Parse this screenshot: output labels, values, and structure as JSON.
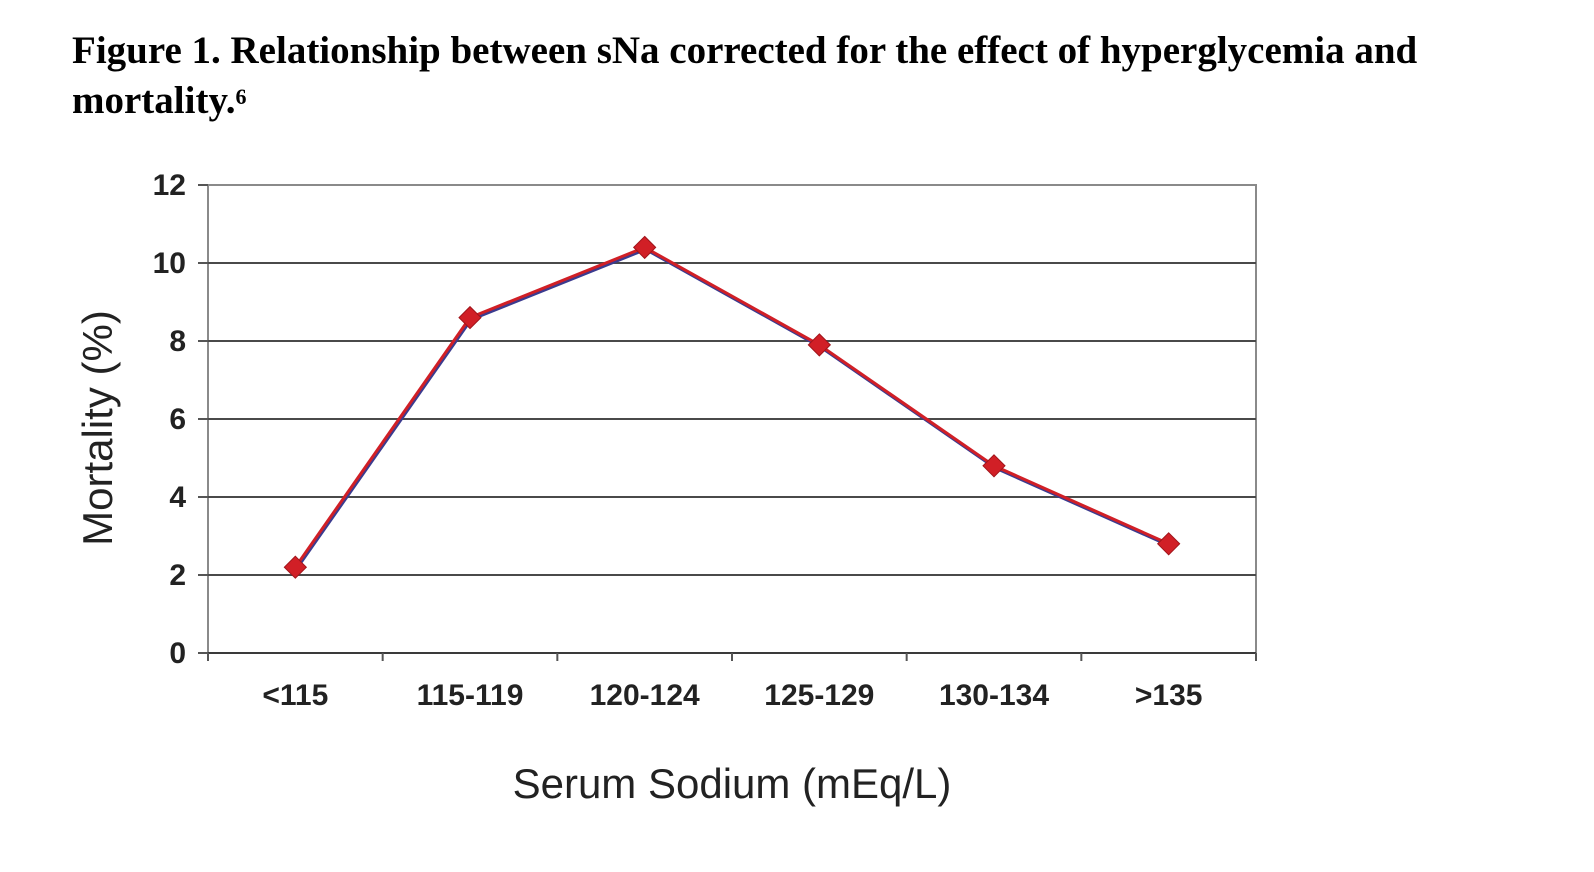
{
  "caption": {
    "text": "Figure 1. Relationship between sNa corrected for the effect of hyperglycemia and mortality.",
    "superscript": "6"
  },
  "chart_data": {
    "type": "line",
    "categories": [
      "<115",
      "115-119",
      "120-124",
      "125-129",
      "130-134",
      ">135"
    ],
    "series": [
      {
        "values": [
          2.2,
          8.6,
          10.4,
          7.9,
          4.8,
          2.8
        ],
        "color": "#d11f26",
        "marker": "diamond"
      }
    ],
    "xlabel": "Serum Sodium (mEq/L)",
    "ylabel": "Mortality (%)",
    "ylim": [
      0,
      12
    ],
    "yticks": [
      "0",
      "2",
      "4",
      "6",
      "8",
      "10",
      "12"
    ],
    "grid": true
  }
}
